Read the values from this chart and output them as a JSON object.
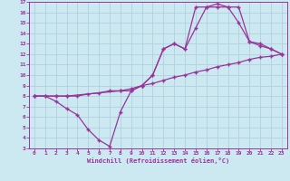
{
  "xlabel": "Windchill (Refroidissement éolien,°C)",
  "line_color": "#993399",
  "bg_color": "#cce8f0",
  "grid_color": "#aaccdd",
  "xlim": [
    -0.5,
    23.5
  ],
  "ylim": [
    3,
    17
  ],
  "xticks": [
    0,
    1,
    2,
    3,
    4,
    5,
    6,
    7,
    8,
    9,
    10,
    11,
    12,
    13,
    14,
    15,
    16,
    17,
    18,
    19,
    20,
    21,
    22,
    23
  ],
  "yticks": [
    3,
    4,
    5,
    6,
    7,
    8,
    9,
    10,
    11,
    12,
    13,
    14,
    15,
    16,
    17
  ],
  "line1_x": [
    0,
    1,
    2,
    3,
    4,
    5,
    6,
    7,
    8,
    9,
    10,
    11,
    12,
    13,
    14,
    15,
    16,
    17,
    18,
    19,
    20,
    21,
    22,
    23
  ],
  "line1_y": [
    8,
    8,
    7.5,
    6.8,
    6.2,
    4.8,
    3.8,
    3.2,
    6.5,
    8.5,
    9.0,
    10.0,
    12.5,
    13.0,
    12.5,
    16.5,
    16.5,
    16.8,
    16.5,
    15.0,
    13.2,
    12.8,
    12.5,
    12.0
  ],
  "line2_x": [
    0,
    1,
    2,
    3,
    4,
    5,
    6,
    7,
    8,
    9,
    10,
    11,
    12,
    13,
    14,
    15,
    16,
    17,
    18,
    19,
    20,
    21,
    22,
    23
  ],
  "line2_y": [
    8.0,
    8.0,
    8.0,
    8.0,
    8.0,
    8.2,
    8.3,
    8.5,
    8.5,
    8.7,
    9.0,
    9.2,
    9.5,
    9.8,
    10.0,
    10.3,
    10.5,
    10.8,
    11.0,
    11.2,
    11.5,
    11.7,
    11.8,
    12.0
  ],
  "line3_x": [
    0,
    2,
    3,
    8,
    9,
    10,
    11,
    12,
    13,
    14,
    15,
    16,
    17,
    18,
    19,
    20,
    21,
    22,
    23
  ],
  "line3_y": [
    8.0,
    8.0,
    8.0,
    8.5,
    8.5,
    9.0,
    10.0,
    12.5,
    13.0,
    12.5,
    14.5,
    16.5,
    16.5,
    16.5,
    16.5,
    13.2,
    13.0,
    12.5,
    12.0
  ]
}
